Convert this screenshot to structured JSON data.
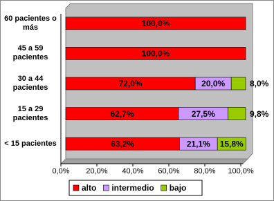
{
  "chart_data": {
    "type": "stacked-bar-horizontal",
    "categories": [
      "60 pacientes o más",
      "45 a 59 pacientes",
      "30 a 44 pacientes",
      "15 a 29 pacientes",
      "< 15 pacientes"
    ],
    "series": [
      {
        "name": "alto",
        "color": "#ff0000",
        "values": [
          100,
          100,
          72,
          62.7,
          63.2
        ],
        "value_labels": [
          "100,0%",
          "100,0%",
          "72,0%",
          "62,7%",
          "63,2%"
        ]
      },
      {
        "name": "intermedio",
        "color": "#cc99ff",
        "values": [
          0,
          0,
          20,
          27.5,
          21.1
        ],
        "value_labels": [
          null,
          null,
          "20,0%",
          "27,5%",
          "21,1%"
        ]
      },
      {
        "name": "bajo",
        "color": "#99cc00",
        "values": [
          0,
          0,
          8,
          9.8,
          15.8
        ],
        "value_labels": [
          null,
          null,
          "8,0%",
          "9,8%",
          "15,8%"
        ]
      }
    ],
    "xlim": [
      0,
      100
    ],
    "xticks": [
      {
        "value": 0,
        "label": "0,0%"
      },
      {
        "value": 20,
        "label": "20,0%"
      },
      {
        "value": 40,
        "label": "40,0%"
      },
      {
        "value": 60,
        "label": "60,0%"
      },
      {
        "value": 80,
        "label": "80,0%"
      },
      {
        "value": 100,
        "label": "100,0%"
      }
    ],
    "legend": "bottom"
  }
}
